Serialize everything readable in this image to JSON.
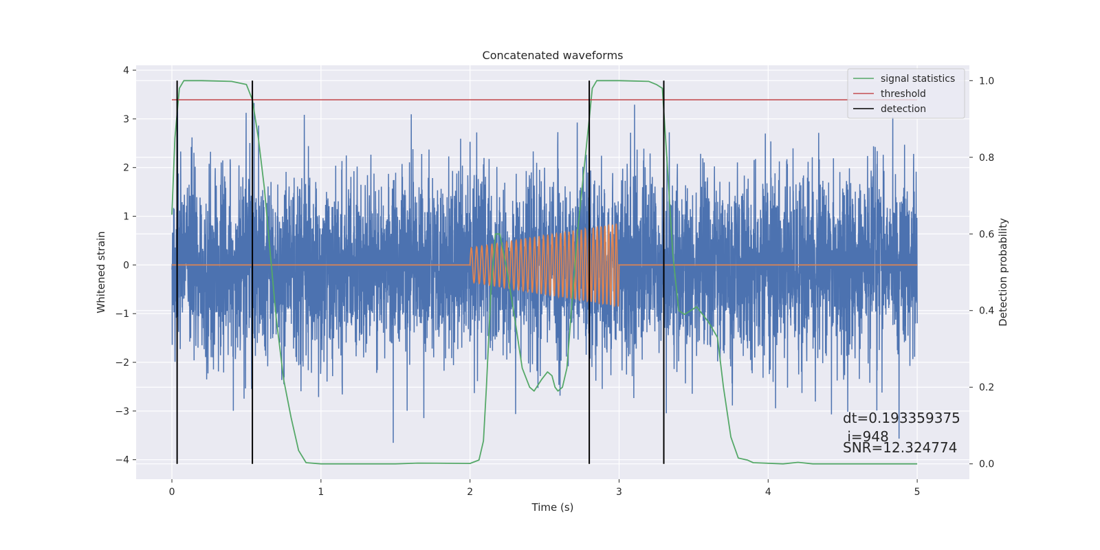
{
  "chart_data": {
    "type": "line",
    "title": "Concatenated waveforms",
    "xlabel": "Time (s)",
    "ylabel": "Whitened strain",
    "y2label": "Detection probability",
    "xlim": [
      -0.24,
      5.35
    ],
    "ylim": [
      -4.4,
      4.1
    ],
    "y2lim": [
      -0.04,
      1.04
    ],
    "x_ticks": [
      "0",
      "1",
      "2",
      "3",
      "4",
      "5"
    ],
    "y_ticks": [
      "4",
      "3",
      "2",
      "1",
      "0",
      "−1",
      "−2",
      "−3",
      "−4"
    ],
    "y2_ticks": [
      "1.0",
      "0.8",
      "0.6",
      "0.4",
      "0.2",
      "0.0"
    ],
    "grid": true,
    "legend_position": "top-right",
    "series": [
      {
        "name": "",
        "axis": "left",
        "color": "#4c72b0",
        "kind": "noise",
        "x_range": [
          0,
          5
        ],
        "amplitude_approx": 3.7
      },
      {
        "name": "",
        "axis": "left",
        "color": "#dd8452",
        "kind": "chirp",
        "x": [
          0,
          2.0,
          3.0,
          5.0
        ],
        "envelope": [
          0,
          0.35,
          0.85,
          0
        ]
      },
      {
        "name": "signal statistics",
        "axis": "right",
        "color": "#55a868",
        "x": [
          0,
          0.02,
          0.05,
          0.08,
          0.1,
          0.2,
          0.4,
          0.5,
          0.54,
          0.58,
          0.62,
          0.66,
          0.7,
          0.75,
          0.8,
          0.85,
          0.9,
          1.0,
          1.5,
          1.65,
          2.0,
          2.06,
          2.09,
          2.11,
          2.14,
          2.17,
          2.2,
          2.25,
          2.3,
          2.35,
          2.4,
          2.43,
          2.48,
          2.52,
          2.55,
          2.57,
          2.59,
          2.62,
          2.65,
          2.68,
          2.72,
          2.76,
          2.8,
          2.82,
          2.85,
          2.9,
          3.0,
          3.2,
          3.25,
          3.29,
          3.32,
          3.36,
          3.4,
          3.44,
          3.48,
          3.52,
          3.56,
          3.6,
          3.66,
          3.7,
          3.75,
          3.8,
          3.86,
          3.9,
          4.1,
          4.2,
          4.3,
          5.0
        ],
        "values": [
          0.65,
          0.85,
          0.98,
          1.0,
          1.0,
          1.0,
          0.998,
          0.99,
          0.95,
          0.85,
          0.72,
          0.55,
          0.38,
          0.22,
          0.12,
          0.035,
          0.003,
          0.0,
          0.0,
          0.002,
          0.001,
          0.01,
          0.06,
          0.2,
          0.45,
          0.6,
          0.6,
          0.5,
          0.38,
          0.25,
          0.2,
          0.19,
          0.22,
          0.24,
          0.23,
          0.2,
          0.19,
          0.2,
          0.25,
          0.4,
          0.6,
          0.75,
          0.9,
          0.98,
          1.0,
          1.0,
          1.0,
          0.998,
          0.99,
          0.98,
          0.8,
          0.55,
          0.4,
          0.39,
          0.4,
          0.41,
          0.39,
          0.37,
          0.33,
          0.2,
          0.07,
          0.015,
          0.01,
          0.003,
          0.0,
          0.004,
          0.0,
          0.0
        ]
      },
      {
        "name": "threshold",
        "axis": "right",
        "color": "#c44e52",
        "x": [
          0,
          5
        ],
        "values": [
          0.95,
          0.95
        ]
      },
      {
        "name": "detection",
        "axis": "right",
        "color": "#000000",
        "kind": "vlines",
        "x": [
          0.035,
          0.54,
          2.8,
          3.3
        ],
        "ymin": 0.0,
        "ymax": 1.0
      }
    ],
    "annotations": [
      "dt=0.193359375",
      " i=948",
      "SNR=12.324774"
    ]
  }
}
